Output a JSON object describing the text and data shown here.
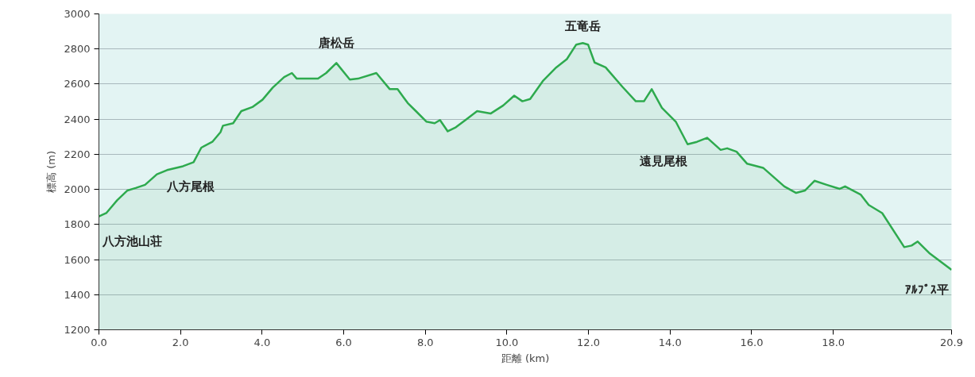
{
  "chart_data": {
    "type": "area",
    "xlabel": "距離 (km)",
    "ylabel": "標高 (m)",
    "x": [
      0,
      0.18,
      0.45,
      0.7,
      0.9,
      1.13,
      1.42,
      1.67,
      2.06,
      2.32,
      2.51,
      2.78,
      2.98,
      3.04,
      3.29,
      3.49,
      3.76,
      4.01,
      4.26,
      4.54,
      4.73,
      4.85,
      5.37,
      5.57,
      5.82,
      6.15,
      6.35,
      6.8,
      7.13,
      7.32,
      7.57,
      7.77,
      8.03,
      8.23,
      8.36,
      8.55,
      8.75,
      9.01,
      9.27,
      9.6,
      9.91,
      10.18,
      10.38,
      10.57,
      10.88,
      11.21,
      11.47,
      11.7,
      11.86,
      11.99,
      12.15,
      12.42,
      12.83,
      13.16,
      13.36,
      13.55,
      13.8,
      14.14,
      14.43,
      14.66,
      14.91,
      15.24,
      15.4,
      15.63,
      15.89,
      16.28,
      16.8,
      17.09,
      17.31,
      17.54,
      17.84,
      18.16,
      18.29,
      18.67,
      18.87,
      19.2,
      19.74,
      19.92,
      20.07,
      20.37,
      20.9
    ],
    "series": [
      {
        "color": "#2eaa4e",
        "values": [
          1846,
          1865,
          1939,
          1994,
          2008,
          2026,
          2086,
          2110,
          2132,
          2155,
          2238,
          2271,
          2326,
          2363,
          2377,
          2446,
          2469,
          2511,
          2580,
          2640,
          2663,
          2631,
          2631,
          2663,
          2720,
          2626,
          2631,
          2663,
          2571,
          2571,
          2492,
          2446,
          2386,
          2377,
          2395,
          2331,
          2354,
          2400,
          2446,
          2432,
          2478,
          2534,
          2502,
          2515,
          2617,
          2695,
          2742,
          2825,
          2834,
          2825,
          2723,
          2695,
          2585,
          2502,
          2502,
          2571,
          2465,
          2386,
          2257,
          2271,
          2294,
          2225,
          2234,
          2215,
          2146,
          2123,
          2017,
          1980,
          1994,
          2049,
          2026,
          2003,
          2017,
          1971,
          1911,
          1865,
          1671,
          1680,
          1703,
          1634,
          1542
        ]
      }
    ],
    "xlim": [
      0,
      20.9
    ],
    "xticks": [
      {
        "value": 0,
        "label": "0.0"
      },
      {
        "value": 2,
        "label": "2.0"
      },
      {
        "value": 4,
        "label": "4.0"
      },
      {
        "value": 6,
        "label": "6.0"
      },
      {
        "value": 8,
        "label": "8.0"
      },
      {
        "value": 10,
        "label": "10.0"
      },
      {
        "value": 12,
        "label": "12.0"
      },
      {
        "value": 14,
        "label": "14.0"
      },
      {
        "value": 16,
        "label": "16.0"
      },
      {
        "value": 18,
        "label": "18.0"
      },
      20.9
    ],
    "ylim": [
      1200,
      3000
    ],
    "yticks": [
      1200,
      1400,
      1600,
      1800,
      2000,
      2200,
      2400,
      2600,
      2800,
      3000
    ],
    "grid": "y",
    "annotations": [
      {
        "text": "八方池山荘",
        "x": 0,
        "y": 1846
      },
      {
        "text": "八方尾根",
        "x": 1.67,
        "y": 2110
      },
      {
        "text": "唐松岳",
        "x": 5.82,
        "y": 2720
      },
      {
        "text": "五竜岳",
        "x": 11.86,
        "y": 2834
      },
      {
        "text": "遠見尾根",
        "x": 14.91,
        "y": 2294
      },
      {
        "text": "ｱﾙﾌﾟｽ平",
        "x": 20.9,
        "y": 1542
      }
    ]
  }
}
